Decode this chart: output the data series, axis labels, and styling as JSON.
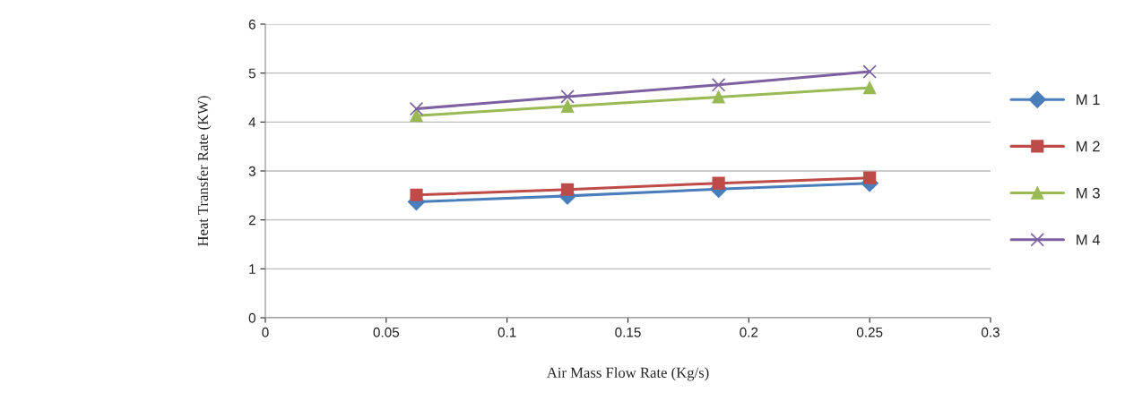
{
  "chart_data": {
    "type": "line",
    "xlabel": "Air Mass Flow Rate (Kg/s)",
    "ylabel": "Heat Transfer Rate (KW)",
    "x": [
      0.0625,
      0.125,
      0.1875,
      0.25
    ],
    "series": [
      {
        "name": "M 1",
        "color": "#4a7ebb",
        "marker": "diamond",
        "values": [
          2.37,
          2.49,
          2.63,
          2.75
        ]
      },
      {
        "name": "M 2",
        "color": "#be4b48",
        "marker": "square",
        "values": [
          2.51,
          2.62,
          2.75,
          2.86
        ]
      },
      {
        "name": "M 3",
        "color": "#98b954",
        "marker": "triangle",
        "values": [
          4.13,
          4.32,
          4.51,
          4.7
        ]
      },
      {
        "name": "M 4",
        "color": "#7d60a0",
        "marker": "cross",
        "values": [
          4.27,
          4.52,
          4.76,
          5.03
        ]
      }
    ],
    "xlim": [
      0,
      0.3
    ],
    "xticks": [
      0,
      0.05,
      0.1,
      0.15,
      0.2,
      0.25,
      0.3
    ],
    "ylim": [
      0,
      6
    ],
    "yticks": [
      0,
      1,
      2,
      3,
      4,
      5,
      6
    ],
    "grid": "y",
    "legend": "right"
  }
}
